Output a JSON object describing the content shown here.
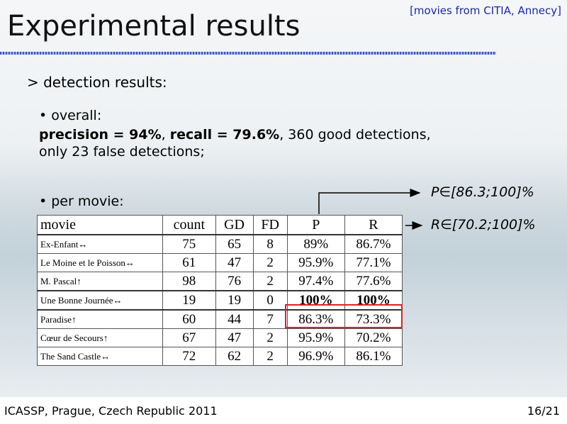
{
  "header": {
    "source": "[movies from CITIA, Annecy]",
    "title": "Experimental results"
  },
  "body": {
    "heading": "> detection results:",
    "overall": {
      "label": "• overall:",
      "parts": [
        "precision = 94%",
        ", ",
        "recall = 79.6%",
        ", 360 good detections,",
        "only 23 false detections;"
      ]
    },
    "per_movie": "• per movie:",
    "annotations": [
      "P∈[86.3;100]%",
      "R∈[70.2;100]%"
    ]
  },
  "table": {
    "columns": [
      "movie",
      "count",
      "GD",
      "FD",
      "P",
      "R"
    ],
    "rows": [
      [
        "Ex-Enfant↔",
        "75",
        "65",
        "8",
        "89%",
        "86.7%"
      ],
      [
        "Le Moine et le Poisson↔",
        "61",
        "47",
        "2",
        "95.9%",
        "77.1%"
      ],
      [
        "M. Pascal↑",
        "98",
        "76",
        "2",
        "97.4%",
        "77.6%"
      ],
      [
        "Une Bonne Journée↔",
        "19",
        "19",
        "0",
        "100%",
        "100%"
      ],
      [
        "Paradise↑",
        "60",
        "44",
        "7",
        "86.3%",
        "73.3%"
      ],
      [
        "Cœur de Secours↑",
        "67",
        "47",
        "2",
        "95.9%",
        "70.2%"
      ],
      [
        "The Sand Castle↔",
        "72",
        "62",
        "2",
        "96.9%",
        "86.1%"
      ]
    ]
  },
  "footer": {
    "venue": "ICASSP, Prague, Czech Republic 2011",
    "page": "16/21"
  }
}
